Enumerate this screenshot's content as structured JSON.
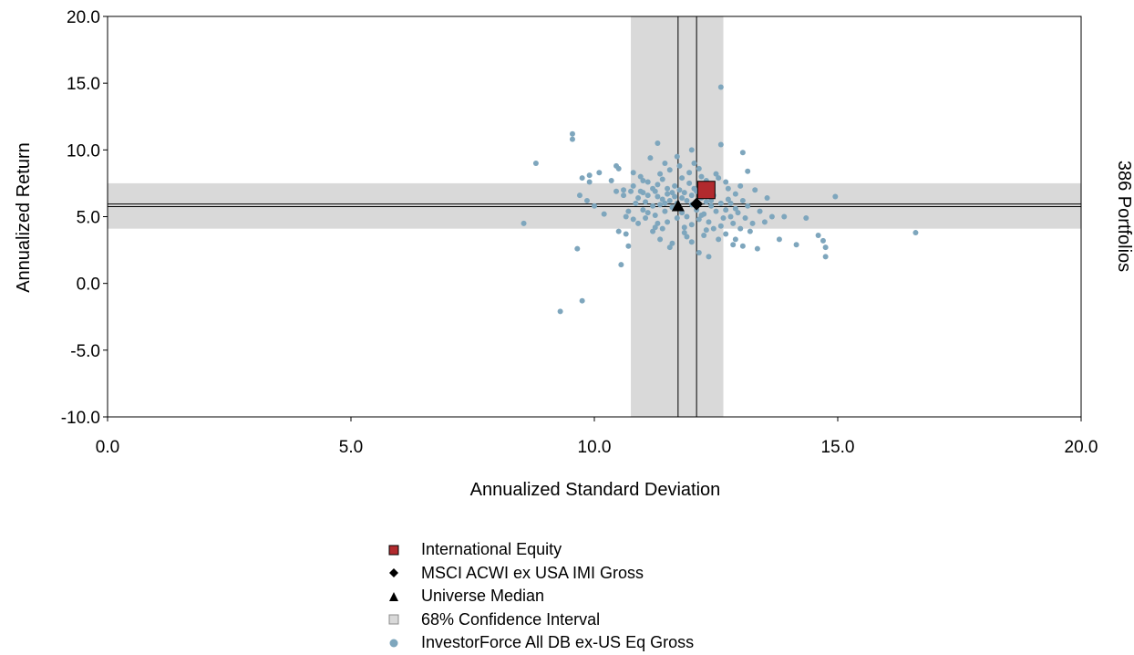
{
  "chart_data": {
    "type": "scatter",
    "xlabel": "Annualized Standard Deviation",
    "ylabel": "Annualized Return",
    "right_label": "386 Portfolios",
    "xlim": [
      0,
      20
    ],
    "ylim": [
      -10,
      20
    ],
    "x_ticks": [
      "0.0",
      "5.0",
      "10.0",
      "15.0",
      "20.0"
    ],
    "y_ticks": [
      "-10.0",
      "-5.0",
      "0.0",
      "5.0",
      "10.0",
      "15.0",
      "20.0"
    ],
    "grid": false,
    "legend_position": "bottom-center",
    "confidence_interval": {
      "x": [
        10.75,
        12.65
      ],
      "y": [
        4.1,
        7.5
      ]
    },
    "median_lines": {
      "x": 11.72,
      "y": 5.75
    },
    "benchmark_lines": {
      "x": 12.1,
      "y": 5.95
    },
    "colors": {
      "portfolio": "#7ea6bd",
      "international_equity": "#b22a2e",
      "band": "#d9d9d9"
    },
    "series": [
      {
        "name": "International Equity",
        "marker": "square",
        "points": [
          [
            12.3,
            7.0
          ]
        ]
      },
      {
        "name": "MSCI ACWI ex USA IMI Gross",
        "marker": "diamond",
        "points": [
          [
            12.1,
            5.95
          ]
        ]
      },
      {
        "name": "Universe Median",
        "marker": "triangle",
        "points": [
          [
            11.72,
            5.75
          ]
        ]
      },
      {
        "name": "68% Confidence Interval",
        "marker": "band",
        "points": []
      },
      {
        "name": "InvestorForce All DB ex-US Eq Gross",
        "marker": "circle",
        "points": [
          [
            8.55,
            4.5
          ],
          [
            8.8,
            9.0
          ],
          [
            9.55,
            11.2
          ],
          [
            9.55,
            10.8
          ],
          [
            9.65,
            2.6
          ],
          [
            9.75,
            -1.3
          ],
          [
            9.3,
            -2.1
          ],
          [
            9.7,
            6.6
          ],
          [
            9.85,
            6.2
          ],
          [
            9.75,
            7.9
          ],
          [
            9.9,
            8.1
          ],
          [
            9.9,
            7.6
          ],
          [
            10.0,
            5.8
          ],
          [
            10.1,
            8.3
          ],
          [
            10.2,
            5.2
          ],
          [
            10.35,
            7.7
          ],
          [
            10.45,
            8.8
          ],
          [
            10.5,
            8.6
          ],
          [
            10.45,
            6.9
          ],
          [
            10.5,
            3.9
          ],
          [
            10.55,
            1.4
          ],
          [
            10.6,
            6.6
          ],
          [
            10.65,
            5.0
          ],
          [
            10.65,
            3.7
          ],
          [
            10.7,
            2.8
          ],
          [
            10.7,
            5.4
          ],
          [
            10.75,
            6.9
          ],
          [
            10.8,
            7.3
          ],
          [
            10.8,
            8.3
          ],
          [
            10.85,
            6.0
          ],
          [
            10.9,
            6.4
          ],
          [
            10.9,
            4.5
          ],
          [
            10.95,
            8.0
          ],
          [
            11.0,
            6.8
          ],
          [
            11.0,
            5.5
          ],
          [
            11.05,
            6.1
          ],
          [
            11.05,
            4.9
          ],
          [
            11.1,
            7.6
          ],
          [
            11.1,
            6.6
          ],
          [
            11.15,
            9.4
          ],
          [
            11.2,
            7.1
          ],
          [
            11.2,
            5.8
          ],
          [
            11.25,
            6.9
          ],
          [
            11.25,
            5.1
          ],
          [
            11.25,
            4.2
          ],
          [
            11.3,
            10.5
          ],
          [
            11.3,
            7.4
          ],
          [
            11.3,
            6.5
          ],
          [
            11.35,
            5.9
          ],
          [
            11.35,
            3.3
          ],
          [
            11.4,
            6.3
          ],
          [
            11.4,
            7.8
          ],
          [
            11.45,
            6.0
          ],
          [
            11.45,
            5.4
          ],
          [
            11.5,
            7.1
          ],
          [
            11.5,
            6.7
          ],
          [
            11.5,
            4.6
          ],
          [
            11.55,
            8.5
          ],
          [
            11.55,
            6.2
          ],
          [
            11.6,
            5.7
          ],
          [
            11.6,
            3.0
          ],
          [
            11.65,
            7.3
          ],
          [
            11.65,
            6.5
          ],
          [
            11.7,
            6.0
          ],
          [
            11.7,
            4.9
          ],
          [
            11.75,
            8.8
          ],
          [
            11.75,
            7.0
          ],
          [
            11.8,
            6.4
          ],
          [
            11.8,
            5.3
          ],
          [
            11.85,
            3.8
          ],
          [
            11.85,
            6.8
          ],
          [
            11.9,
            6.2
          ],
          [
            11.9,
            5.0
          ],
          [
            11.95,
            7.5
          ],
          [
            11.95,
            8.3
          ],
          [
            12.0,
            6.6
          ],
          [
            12.0,
            4.4
          ],
          [
            12.0,
            3.1
          ],
          [
            12.05,
            7.1
          ],
          [
            12.05,
            9.0
          ],
          [
            12.1,
            5.5
          ],
          [
            12.1,
            6.9
          ],
          [
            12.15,
            4.8
          ],
          [
            12.15,
            2.3
          ],
          [
            12.2,
            6.4
          ],
          [
            12.2,
            8.0
          ],
          [
            12.25,
            5.2
          ],
          [
            12.25,
            3.6
          ],
          [
            12.3,
            6.1
          ],
          [
            12.3,
            7.7
          ],
          [
            12.35,
            4.6
          ],
          [
            12.35,
            2.0
          ],
          [
            12.4,
            5.8
          ],
          [
            12.4,
            7.3
          ],
          [
            12.45,
            4.1
          ],
          [
            12.45,
            6.6
          ],
          [
            12.5,
            5.4
          ],
          [
            12.55,
            3.3
          ],
          [
            12.55,
            7.9
          ],
          [
            12.6,
            6.0
          ],
          [
            12.6,
            10.4
          ],
          [
            12.6,
            14.7
          ],
          [
            12.65,
            4.9
          ],
          [
            12.7,
            5.5
          ],
          [
            12.7,
            3.7
          ],
          [
            12.75,
            6.3
          ],
          [
            12.75,
            7.1
          ],
          [
            12.8,
            5.0
          ],
          [
            12.85,
            2.9
          ],
          [
            12.85,
            4.5
          ],
          [
            12.9,
            6.7
          ],
          [
            12.9,
            3.3
          ],
          [
            12.95,
            5.3
          ],
          [
            13.0,
            4.1
          ],
          [
            13.0,
            7.3
          ],
          [
            13.05,
            9.8
          ],
          [
            13.05,
            2.8
          ],
          [
            13.1,
            4.9
          ],
          [
            13.15,
            5.8
          ],
          [
            13.15,
            8.4
          ],
          [
            13.2,
            3.9
          ],
          [
            13.25,
            4.5
          ],
          [
            13.3,
            7.0
          ],
          [
            13.35,
            2.6
          ],
          [
            13.4,
            5.4
          ],
          [
            13.5,
            4.6
          ],
          [
            13.55,
            6.4
          ],
          [
            13.65,
            5.0
          ],
          [
            13.8,
            3.3
          ],
          [
            13.9,
            5.0
          ],
          [
            14.15,
            2.9
          ],
          [
            14.35,
            4.9
          ],
          [
            14.6,
            3.6
          ],
          [
            14.7,
            3.2
          ],
          [
            14.75,
            2.7
          ],
          [
            14.75,
            2.0
          ],
          [
            14.95,
            6.5
          ],
          [
            16.6,
            3.8
          ],
          [
            11.1,
            5.3
          ],
          [
            11.6,
            6.8
          ],
          [
            12.2,
            5.1
          ],
          [
            11.8,
            7.9
          ],
          [
            12.4,
            6.2
          ],
          [
            11.3,
            4.5
          ],
          [
            12.8,
            6.0
          ],
          [
            10.95,
            6.9
          ],
          [
            11.4,
            4.1
          ],
          [
            12.0,
            5.9
          ],
          [
            12.6,
            4.3
          ],
          [
            11.2,
            3.9
          ],
          [
            11.9,
            3.5
          ],
          [
            12.3,
            4.0
          ],
          [
            11.0,
            7.7
          ],
          [
            12.5,
            8.2
          ],
          [
            11.7,
            9.5
          ],
          [
            10.8,
            4.8
          ],
          [
            11.55,
            2.7
          ],
          [
            12.15,
            8.6
          ],
          [
            12.9,
            5.6
          ],
          [
            13.05,
            6.2
          ],
          [
            11.35,
            8.2
          ],
          [
            10.6,
            7.0
          ],
          [
            11.85,
            4.2
          ],
          [
            12.7,
            7.6
          ],
          [
            11.45,
            9.0
          ],
          [
            12.0,
            10.0
          ]
        ]
      }
    ]
  }
}
